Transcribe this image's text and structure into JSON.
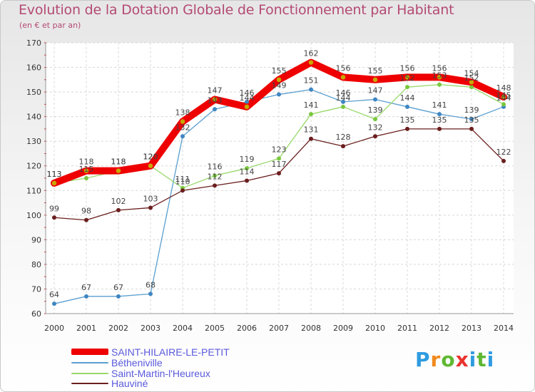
{
  "header": {
    "title": "Evolution de la Dotation Globale de Fonctionnement par Habitant",
    "subtitle": "(en € et par an)"
  },
  "logo": {
    "text": "Proxiti",
    "letter_colors": [
      "#2f9be0",
      "#f08a1c",
      "#5fb832",
      "#e8332e",
      "#2f9be0",
      "#5fb832",
      "#2f9be0"
    ]
  },
  "chart_data": {
    "type": "line",
    "title": "Evolution de la Dotation Globale de Fonctionnement par Habitant",
    "subtitle": "(en € et par an)",
    "xlabel": "",
    "ylabel": "",
    "x": [
      "2000",
      "2001",
      "2002",
      "2003",
      "2004",
      "2005",
      "2006",
      "2007",
      "2008",
      "2009",
      "2010",
      "2011",
      "2012",
      "2013",
      "2014"
    ],
    "ylim": [
      60,
      170
    ],
    "yticks": [
      "60",
      "70",
      "80",
      "90",
      "100",
      "110",
      "120",
      "130",
      "140",
      "150",
      "160",
      "170"
    ],
    "grid": true,
    "legend_position": "bottom-left",
    "series": [
      {
        "name": "SAINT-HILAIRE-LE-PETIT",
        "color": "#ee0000",
        "marker": "#c8a800",
        "values": [
          113,
          118,
          118,
          120,
          138,
          147,
          144,
          155,
          162,
          156,
          155,
          156,
          156,
          154,
          148
        ],
        "labels": [
          "113",
          "118",
          "118",
          "120",
          "138",
          "147",
          "144",
          "155",
          "162",
          "156",
          "155",
          "156",
          "156",
          "154",
          "148"
        ]
      },
      {
        "name": "Bétheniville",
        "color": "#5b9fd0",
        "marker": "#3f86c2",
        "values": [
          64,
          67,
          67,
          68,
          132,
          143,
          146,
          149,
          151,
          146,
          147,
          144,
          141,
          139,
          144
        ],
        "labels": [
          "64",
          "67",
          "67",
          "68",
          "132",
          "143",
          "146",
          "149",
          "151",
          "146",
          "147",
          "144",
          "141",
          "139",
          "144"
        ]
      },
      {
        "name": "Saint-Martin-l'Heureux",
        "color": "#98d86a",
        "marker": "#79c83c",
        "values": [
          113,
          115,
          118,
          120,
          111,
          116,
          119,
          123,
          141,
          144,
          139,
          152,
          153,
          152,
          145
        ],
        "labels": [
          "113",
          "115",
          "118",
          "120",
          "111",
          "116",
          "119",
          "123",
          "141",
          "144",
          "139",
          "152",
          "153",
          "152",
          "145"
        ]
      },
      {
        "name": "Hauviné",
        "color": "#6b1e1e",
        "marker": "#6b1e1e",
        "values": [
          99,
          98,
          102,
          103,
          110,
          112,
          114,
          117,
          131,
          128,
          132,
          135,
          135,
          135,
          122
        ],
        "labels": [
          "99",
          "98",
          "102",
          "103",
          "110",
          "112",
          "114",
          "117",
          "131",
          "128",
          "132",
          "135",
          "135",
          "135",
          "122"
        ]
      }
    ]
  }
}
